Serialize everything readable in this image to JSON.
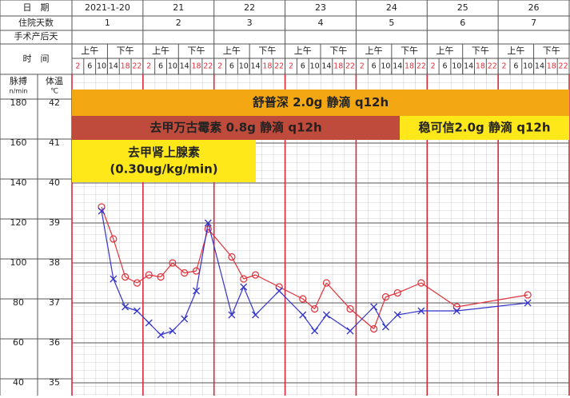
{
  "header": {
    "date_label": "日　期",
    "hospital_day_label": "住院天数",
    "surgery_day_label": "手术产后天",
    "time_label": "时　间",
    "dates": [
      "2021-1-20",
      "21",
      "22",
      "23",
      "24",
      "25",
      "26"
    ],
    "hospital_days": [
      1,
      2,
      3,
      4,
      5,
      6,
      7
    ],
    "am": "上午",
    "pm": "下午"
  },
  "chart_data": {
    "type": "line",
    "categories": [
      "2",
      "6",
      "10",
      "14",
      "18",
      "22",
      "2",
      "6",
      "10",
      "14",
      "18",
      "22",
      "2",
      "6",
      "10",
      "14",
      "18",
      "22",
      "2",
      "6",
      "10",
      "14",
      "18",
      "22",
      "2",
      "6",
      "10",
      "14",
      "18",
      "22",
      "2",
      "6",
      "10",
      "14",
      "18",
      "22",
      "2",
      "6",
      "10",
      "14",
      "18",
      "22"
    ],
    "ylabel_unit": "n/min",
    "y2label_unit": "℃",
    "ylim": [
      40,
      180
    ],
    "yticks": [
      40,
      60,
      80,
      100,
      120,
      140,
      160,
      180
    ],
    "y2lim": [
      35,
      42
    ],
    "y2ticks": [
      35,
      36,
      37,
      38,
      39,
      40,
      41,
      42
    ],
    "grid": true,
    "series": [
      {
        "name": "脉搏",
        "color": "#e0303a",
        "marker": "circle",
        "values": [
          null,
          null,
          128,
          112,
          93,
          90,
          94,
          93,
          100,
          95,
          96,
          117,
          null,
          103,
          92,
          94,
          null,
          88,
          null,
          82,
          77,
          90,
          null,
          77,
          null,
          67,
          83,
          85,
          null,
          90,
          null,
          null,
          78,
          null,
          null,
          null,
          null,
          null,
          84,
          null,
          null,
          null
        ]
      },
      {
        "name": "体温",
        "color": "#3333cc",
        "marker": "x",
        "axis": "y2",
        "values": [
          null,
          null,
          39.3,
          37.6,
          36.9,
          36.8,
          36.5,
          36.2,
          36.3,
          36.6,
          37.3,
          39.0,
          null,
          36.7,
          37.4,
          36.7,
          null,
          37.3,
          null,
          36.7,
          36.3,
          36.7,
          null,
          36.3,
          null,
          36.9,
          36.4,
          36.7,
          null,
          36.8,
          null,
          null,
          36.8,
          null,
          null,
          null,
          null,
          null,
          37.0,
          null,
          null,
          null
        ]
      }
    ],
    "annotations": [
      {
        "text": "舒普深 2.0g 静滴 q12h",
        "color": "#f3a712"
      },
      {
        "text": "去甲万古霉素  0.8g 静滴 q12h",
        "color": "#bf4b3c"
      },
      {
        "text": "稳可信2.0g 静滴 q12h",
        "color": "#ffe81a"
      },
      {
        "text": "去甲肾上腺素",
        "subtext": "(0.30ug/kg/min)",
        "color": "#ffe81a"
      }
    ]
  }
}
